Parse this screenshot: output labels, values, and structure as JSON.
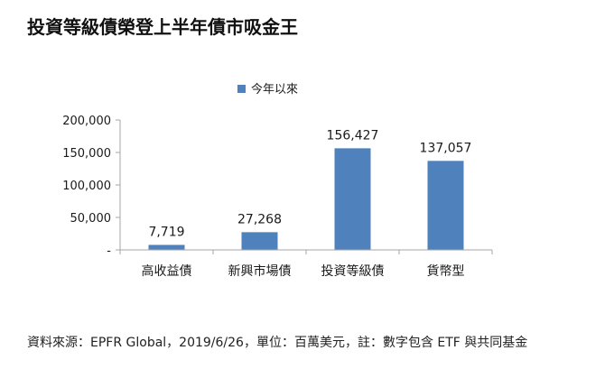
{
  "title": "投資等級債榮登上半年債市吸金王",
  "source_note": "資料來源：EPFR Global，2019/6/26，單位：百萬美元，註：數字包含 ETF 與共同基金",
  "colors": {
    "bar": "#4f81bd",
    "axis": "#a6a6a6",
    "text": "#1a1a1a"
  },
  "chart_data": {
    "type": "bar",
    "categories": [
      "高收益債",
      "新興市場債",
      "投資等級債",
      "貨幣型"
    ],
    "series": [
      {
        "name": "今年以來",
        "values": [
          7719,
          27268,
          156427,
          137057
        ]
      }
    ],
    "data_labels": [
      "7,719",
      "27,268",
      "156,427",
      "137,057"
    ],
    "ylim": [
      0,
      200000
    ],
    "yticks": [
      0,
      50000,
      100000,
      150000,
      200000
    ],
    "ytick_labels": [
      "-",
      "50,000",
      "100,000",
      "150,000",
      "200,000"
    ],
    "legend_position": "top",
    "grid": false
  }
}
